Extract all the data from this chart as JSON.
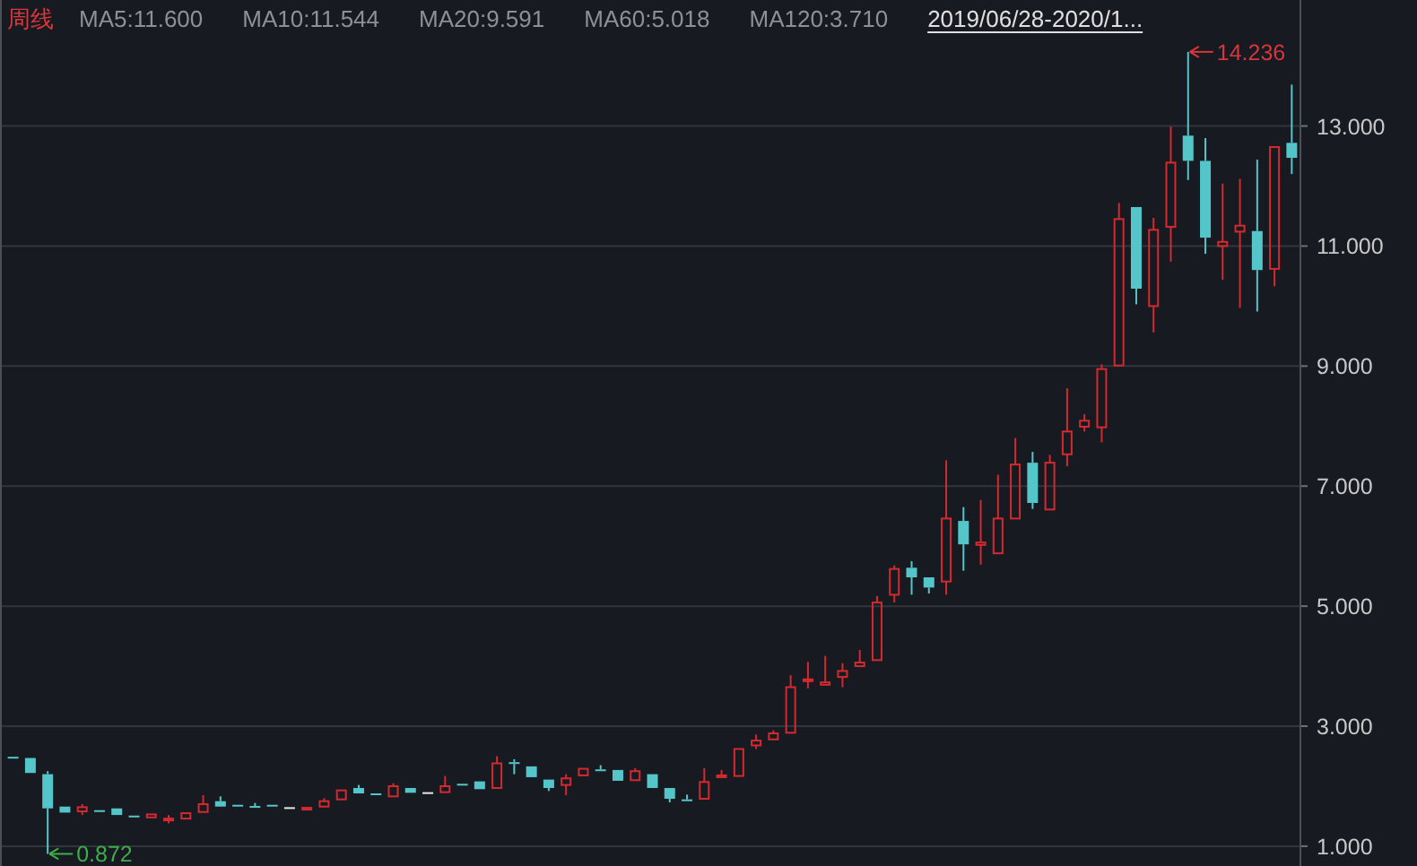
{
  "chart_data": {
    "type": "candlestick",
    "title": "周线",
    "annotations": [
      "MA5:11.600",
      "MA10:11.544",
      "MA20:9.591",
      "MA60:5.018",
      "MA120:3.710",
      "2019/06/28-2020/1...",
      "14.236",
      "0.872"
    ],
    "categories": [
      null,
      null,
      null,
      null,
      null,
      null,
      null,
      null,
      null,
      null,
      null,
      null,
      null,
      null,
      null,
      null,
      null,
      null,
      null,
      null,
      null,
      null,
      null,
      null,
      null,
      null,
      null,
      null,
      null,
      null,
      null,
      null,
      null,
      null,
      null,
      null,
      null,
      null,
      null,
      null,
      null,
      null,
      null,
      null,
      null,
      null,
      null,
      null,
      null,
      null,
      null,
      null,
      null,
      null,
      null,
      null,
      null,
      null,
      null,
      null,
      null,
      null,
      null,
      null,
      null,
      null,
      null,
      null,
      null,
      null,
      null,
      null,
      null,
      null,
      null
    ],
    "ohlc": [
      [
        2.49,
        2.52,
        2.45,
        2.47
      ],
      [
        2.47,
        2.5,
        2.2,
        2.22
      ],
      [
        2.2,
        2.25,
        0.872,
        1.63
      ],
      [
        1.66,
        1.7,
        1.54,
        1.56
      ],
      [
        1.58,
        1.7,
        1.52,
        1.65
      ],
      [
        1.6,
        1.63,
        1.57,
        1.58
      ],
      [
        1.63,
        1.64,
        1.5,
        1.52
      ],
      [
        1.51,
        1.53,
        1.46,
        1.49
      ],
      [
        1.48,
        1.56,
        1.46,
        1.53
      ],
      [
        1.44,
        1.52,
        1.38,
        1.46
      ],
      [
        1.46,
        1.58,
        1.43,
        1.55
      ],
      [
        1.57,
        1.85,
        1.55,
        1.7
      ],
      [
        1.75,
        1.83,
        1.64,
        1.66
      ],
      [
        1.69,
        1.72,
        1.65,
        1.67
      ],
      [
        1.67,
        1.72,
        1.61,
        1.65
      ],
      [
        1.69,
        1.7,
        1.66,
        1.67
      ],
      [
        1.65,
        1.68,
        1.63,
        1.65
      ],
      [
        1.63,
        1.66,
        1.62,
        1.64
      ],
      [
        1.66,
        1.8,
        1.64,
        1.75
      ],
      [
        1.78,
        1.96,
        1.76,
        1.93
      ],
      [
        1.97,
        2.02,
        1.86,
        1.88
      ],
      [
        1.88,
        1.92,
        1.84,
        1.86
      ],
      [
        1.83,
        2.05,
        1.81,
        2.0
      ],
      [
        1.97,
        1.99,
        1.87,
        1.89
      ],
      [
        1.9,
        1.94,
        1.88,
        1.9
      ],
      [
        1.9,
        2.17,
        1.88,
        2.0
      ],
      [
        2.04,
        2.05,
        2.01,
        2.02
      ],
      [
        2.08,
        2.1,
        1.93,
        1.95
      ],
      [
        1.97,
        2.5,
        1.95,
        2.38
      ],
      [
        2.4,
        2.45,
        2.2,
        2.37
      ],
      [
        2.33,
        2.35,
        2.12,
        2.15
      ],
      [
        2.11,
        2.15,
        1.92,
        1.97
      ],
      [
        2.02,
        2.2,
        1.85,
        2.13
      ],
      [
        2.18,
        2.32,
        2.16,
        2.29
      ],
      [
        2.28,
        2.35,
        2.25,
        2.26
      ],
      [
        2.27,
        2.3,
        2.07,
        2.09
      ],
      [
        2.1,
        2.3,
        2.07,
        2.25
      ],
      [
        2.2,
        2.22,
        1.95,
        1.97
      ],
      [
        1.97,
        1.99,
        1.73,
        1.79
      ],
      [
        1.78,
        1.86,
        1.75,
        1.76
      ],
      [
        1.79,
        2.3,
        1.77,
        2.07
      ],
      [
        2.15,
        2.27,
        2.12,
        2.18
      ],
      [
        2.17,
        2.65,
        2.14,
        2.62
      ],
      [
        2.68,
        2.86,
        2.62,
        2.76
      ],
      [
        2.78,
        2.93,
        2.75,
        2.88
      ],
      [
        2.89,
        3.85,
        2.87,
        3.65
      ],
      [
        3.75,
        4.07,
        3.63,
        3.78
      ],
      [
        3.69,
        4.17,
        3.65,
        3.73
      ],
      [
        3.82,
        4.05,
        3.65,
        3.92
      ],
      [
        4.0,
        4.27,
        3.96,
        4.06
      ],
      [
        4.1,
        5.17,
        4.08,
        5.06
      ],
      [
        5.19,
        5.68,
        5.06,
        5.62
      ],
      [
        5.64,
        5.75,
        5.19,
        5.48
      ],
      [
        5.48,
        5.52,
        5.21,
        5.31
      ],
      [
        5.41,
        7.43,
        5.19,
        6.46
      ],
      [
        6.42,
        6.65,
        5.59,
        6.03
      ],
      [
        6.02,
        6.77,
        5.69,
        6.06
      ],
      [
        5.88,
        7.19,
        5.85,
        6.46
      ],
      [
        6.46,
        7.8,
        6.42,
        7.36
      ],
      [
        7.39,
        7.57,
        6.62,
        6.72
      ],
      [
        6.61,
        7.52,
        6.58,
        7.39
      ],
      [
        7.53,
        8.63,
        7.33,
        7.91
      ],
      [
        7.99,
        8.2,
        7.91,
        8.09
      ],
      [
        7.98,
        9.03,
        7.73,
        8.95
      ],
      [
        9.01,
        11.72,
        9.0,
        11.45
      ],
      [
        11.65,
        11.68,
        10.03,
        10.29
      ],
      [
        10.0,
        11.47,
        9.56,
        11.27
      ],
      [
        11.32,
        12.99,
        10.74,
        12.39
      ],
      [
        12.84,
        14.236,
        12.1,
        12.42
      ],
      [
        12.42,
        12.8,
        10.87,
        11.14
      ],
      [
        11.0,
        12.04,
        10.44,
        11.07
      ],
      [
        11.24,
        12.12,
        9.97,
        11.34
      ],
      [
        11.25,
        12.44,
        9.91,
        10.6
      ],
      [
        10.62,
        12.69,
        10.33,
        12.65
      ],
      [
        12.72,
        13.69,
        12.2,
        12.47
      ]
    ],
    "colors": [
      "#54c6c9",
      "#54c6c9",
      "#54c6c9",
      "#54c6c9",
      "#d42a2f",
      "#54c6c9",
      "#54c6c9",
      "#54c6c9",
      "#d42a2f",
      "#d42a2f",
      "#d42a2f",
      "#d42a2f",
      "#54c6c9",
      "#54c6c9",
      "#54c6c9",
      "#54c6c9",
      "#e6e6e6",
      "#d42a2f",
      "#d42a2f",
      "#d42a2f",
      "#54c6c9",
      "#54c6c9",
      "#d42a2f",
      "#54c6c9",
      "#e6e6e6",
      "#d42a2f",
      "#54c6c9",
      "#54c6c9",
      "#d42a2f",
      "#54c6c9",
      "#54c6c9",
      "#54c6c9",
      "#d42a2f",
      "#d42a2f",
      "#54c6c9",
      "#54c6c9",
      "#d42a2f",
      "#54c6c9",
      "#54c6c9",
      "#54c6c9",
      "#d42a2f",
      "#d42a2f",
      "#d42a2f",
      "#d42a2f",
      "#d42a2f",
      "#d42a2f",
      "#d42a2f",
      "#d42a2f",
      "#d42a2f",
      "#d42a2f",
      "#d42a2f",
      "#d42a2f",
      "#54c6c9",
      "#54c6c9",
      "#d42a2f",
      "#54c6c9",
      "#d42a2f",
      "#d42a2f",
      "#d42a2f",
      "#54c6c9",
      "#d42a2f",
      "#d42a2f",
      "#d42a2f",
      "#d42a2f",
      "#d42a2f",
      "#54c6c9",
      "#d42a2f",
      "#d42a2f",
      "#54c6c9",
      "#54c6c9",
      "#d42a2f",
      "#d42a2f",
      "#54c6c9",
      "#d42a2f",
      "#54c6c9"
    ],
    "ylim": [
      0.67,
      15.1
    ],
    "yticks": [
      {
        "value": 1,
        "label": "1.000"
      },
      {
        "value": 3,
        "label": "3.000"
      },
      {
        "value": 5,
        "label": "5.000"
      },
      {
        "value": 7,
        "label": "7.000"
      },
      {
        "value": 9,
        "label": "9.000"
      },
      {
        "value": 11,
        "label": "11.000"
      },
      {
        "value": 13,
        "label": "13.000"
      }
    ],
    "grid": "y"
  }
}
